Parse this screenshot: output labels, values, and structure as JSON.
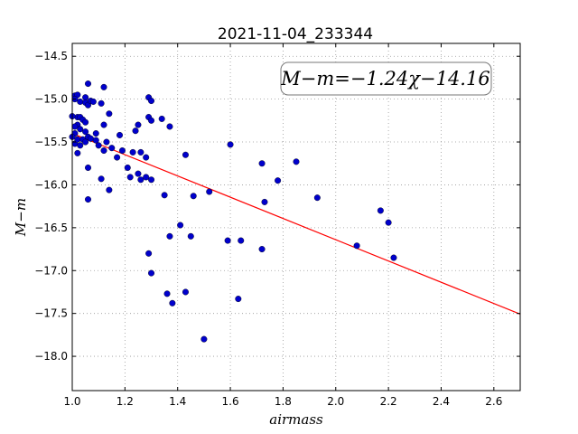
{
  "chart_data": {
    "type": "scatter",
    "title": "2021-11-04_233344",
    "xlabel": "airmass",
    "ylabel": "M−m",
    "xlim": [
      1.0,
      2.7
    ],
    "ylim": [
      -18.4,
      -14.35
    ],
    "y_inverted": true,
    "grid": true,
    "xticks": [
      "1.0",
      "1.2",
      "1.4",
      "1.6",
      "1.8",
      "2.0",
      "2.2",
      "2.4",
      "2.6"
    ],
    "yticks": [
      "−14.5",
      "−15.0",
      "−15.5",
      "−16.0",
      "−16.5",
      "−17.0",
      "−17.5",
      "−18.0"
    ],
    "fit_label": "M−m=−1.24χ−14.16",
    "fit_line": {
      "slope": -1.24,
      "intercept": -14.16,
      "x_range": [
        1.0,
        2.7
      ],
      "color": "#ff0000"
    },
    "point_color": "#0000cc",
    "points": [
      [
        1.01,
        -14.96
      ],
      [
        1.02,
        -14.95
      ],
      [
        1.01,
        -15.0
      ],
      [
        1.03,
        -15.03
      ],
      [
        1.05,
        -14.98
      ],
      [
        1.06,
        -14.82
      ],
      [
        1.05,
        -15.04
      ],
      [
        1.06,
        -15.07
      ],
      [
        1.07,
        -15.02
      ],
      [
        1.08,
        -15.03
      ],
      [
        1.02,
        -15.21
      ],
      [
        1.03,
        -15.21
      ],
      [
        1.04,
        -15.24
      ],
      [
        1.05,
        -15.27
      ],
      [
        1.0,
        -15.2
      ],
      [
        1.02,
        -15.3
      ],
      [
        1.01,
        -15.32
      ],
      [
        1.03,
        -15.35
      ],
      [
        1.01,
        -15.4
      ],
      [
        1.0,
        -15.44
      ],
      [
        1.01,
        -15.52
      ],
      [
        1.02,
        -15.47
      ],
      [
        1.03,
        -15.54
      ],
      [
        1.04,
        -15.47
      ],
      [
        1.05,
        -15.5
      ],
      [
        1.06,
        -15.44
      ],
      [
        1.05,
        -15.38
      ],
      [
        1.07,
        -15.46
      ],
      [
        1.09,
        -15.48
      ],
      [
        1.09,
        -15.4
      ],
      [
        1.1,
        -15.54
      ],
      [
        1.11,
        -15.05
      ],
      [
        1.12,
        -14.86
      ],
      [
        1.14,
        -15.17
      ],
      [
        1.12,
        -15.3
      ],
      [
        1.02,
        -15.63
      ],
      [
        1.06,
        -15.8
      ],
      [
        1.06,
        -16.17
      ],
      [
        1.11,
        -15.93
      ],
      [
        1.14,
        -16.06
      ],
      [
        1.12,
        -15.6
      ],
      [
        1.13,
        -15.5
      ],
      [
        1.15,
        -15.57
      ],
      [
        1.17,
        -15.68
      ],
      [
        1.18,
        -15.42
      ],
      [
        1.19,
        -15.6
      ],
      [
        1.21,
        -15.8
      ],
      [
        1.22,
        -15.91
      ],
      [
        1.23,
        -15.62
      ],
      [
        1.24,
        -15.37
      ],
      [
        1.25,
        -15.3
      ],
      [
        1.25,
        -15.87
      ],
      [
        1.26,
        -15.94
      ],
      [
        1.26,
        -15.62
      ],
      [
        1.28,
        -15.68
      ],
      [
        1.28,
        -15.91
      ],
      [
        1.29,
        -15.21
      ],
      [
        1.29,
        -14.98
      ],
      [
        1.3,
        -15.02
      ],
      [
        1.3,
        -15.25
      ],
      [
        1.3,
        -15.94
      ],
      [
        1.34,
        -15.23
      ],
      [
        1.37,
        -15.32
      ],
      [
        1.35,
        -16.12
      ],
      [
        1.37,
        -16.6
      ],
      [
        1.29,
        -16.8
      ],
      [
        1.3,
        -17.03
      ],
      [
        1.36,
        -17.27
      ],
      [
        1.38,
        -17.38
      ],
      [
        1.41,
        -16.47
      ],
      [
        1.43,
        -15.65
      ],
      [
        1.43,
        -17.25
      ],
      [
        1.45,
        -16.6
      ],
      [
        1.46,
        -16.13
      ],
      [
        1.5,
        -17.8
      ],
      [
        1.52,
        -16.08
      ],
      [
        1.59,
        -16.65
      ],
      [
        1.6,
        -15.53
      ],
      [
        1.63,
        -17.33
      ],
      [
        1.64,
        -16.65
      ],
      [
        1.72,
        -15.75
      ],
      [
        1.72,
        -16.75
      ],
      [
        1.73,
        -16.2
      ],
      [
        1.78,
        -15.95
      ],
      [
        1.85,
        -15.73
      ],
      [
        1.93,
        -16.15
      ],
      [
        2.08,
        -16.71
      ],
      [
        2.17,
        -16.3
      ],
      [
        2.2,
        -16.44
      ],
      [
        2.22,
        -16.85
      ]
    ]
  }
}
